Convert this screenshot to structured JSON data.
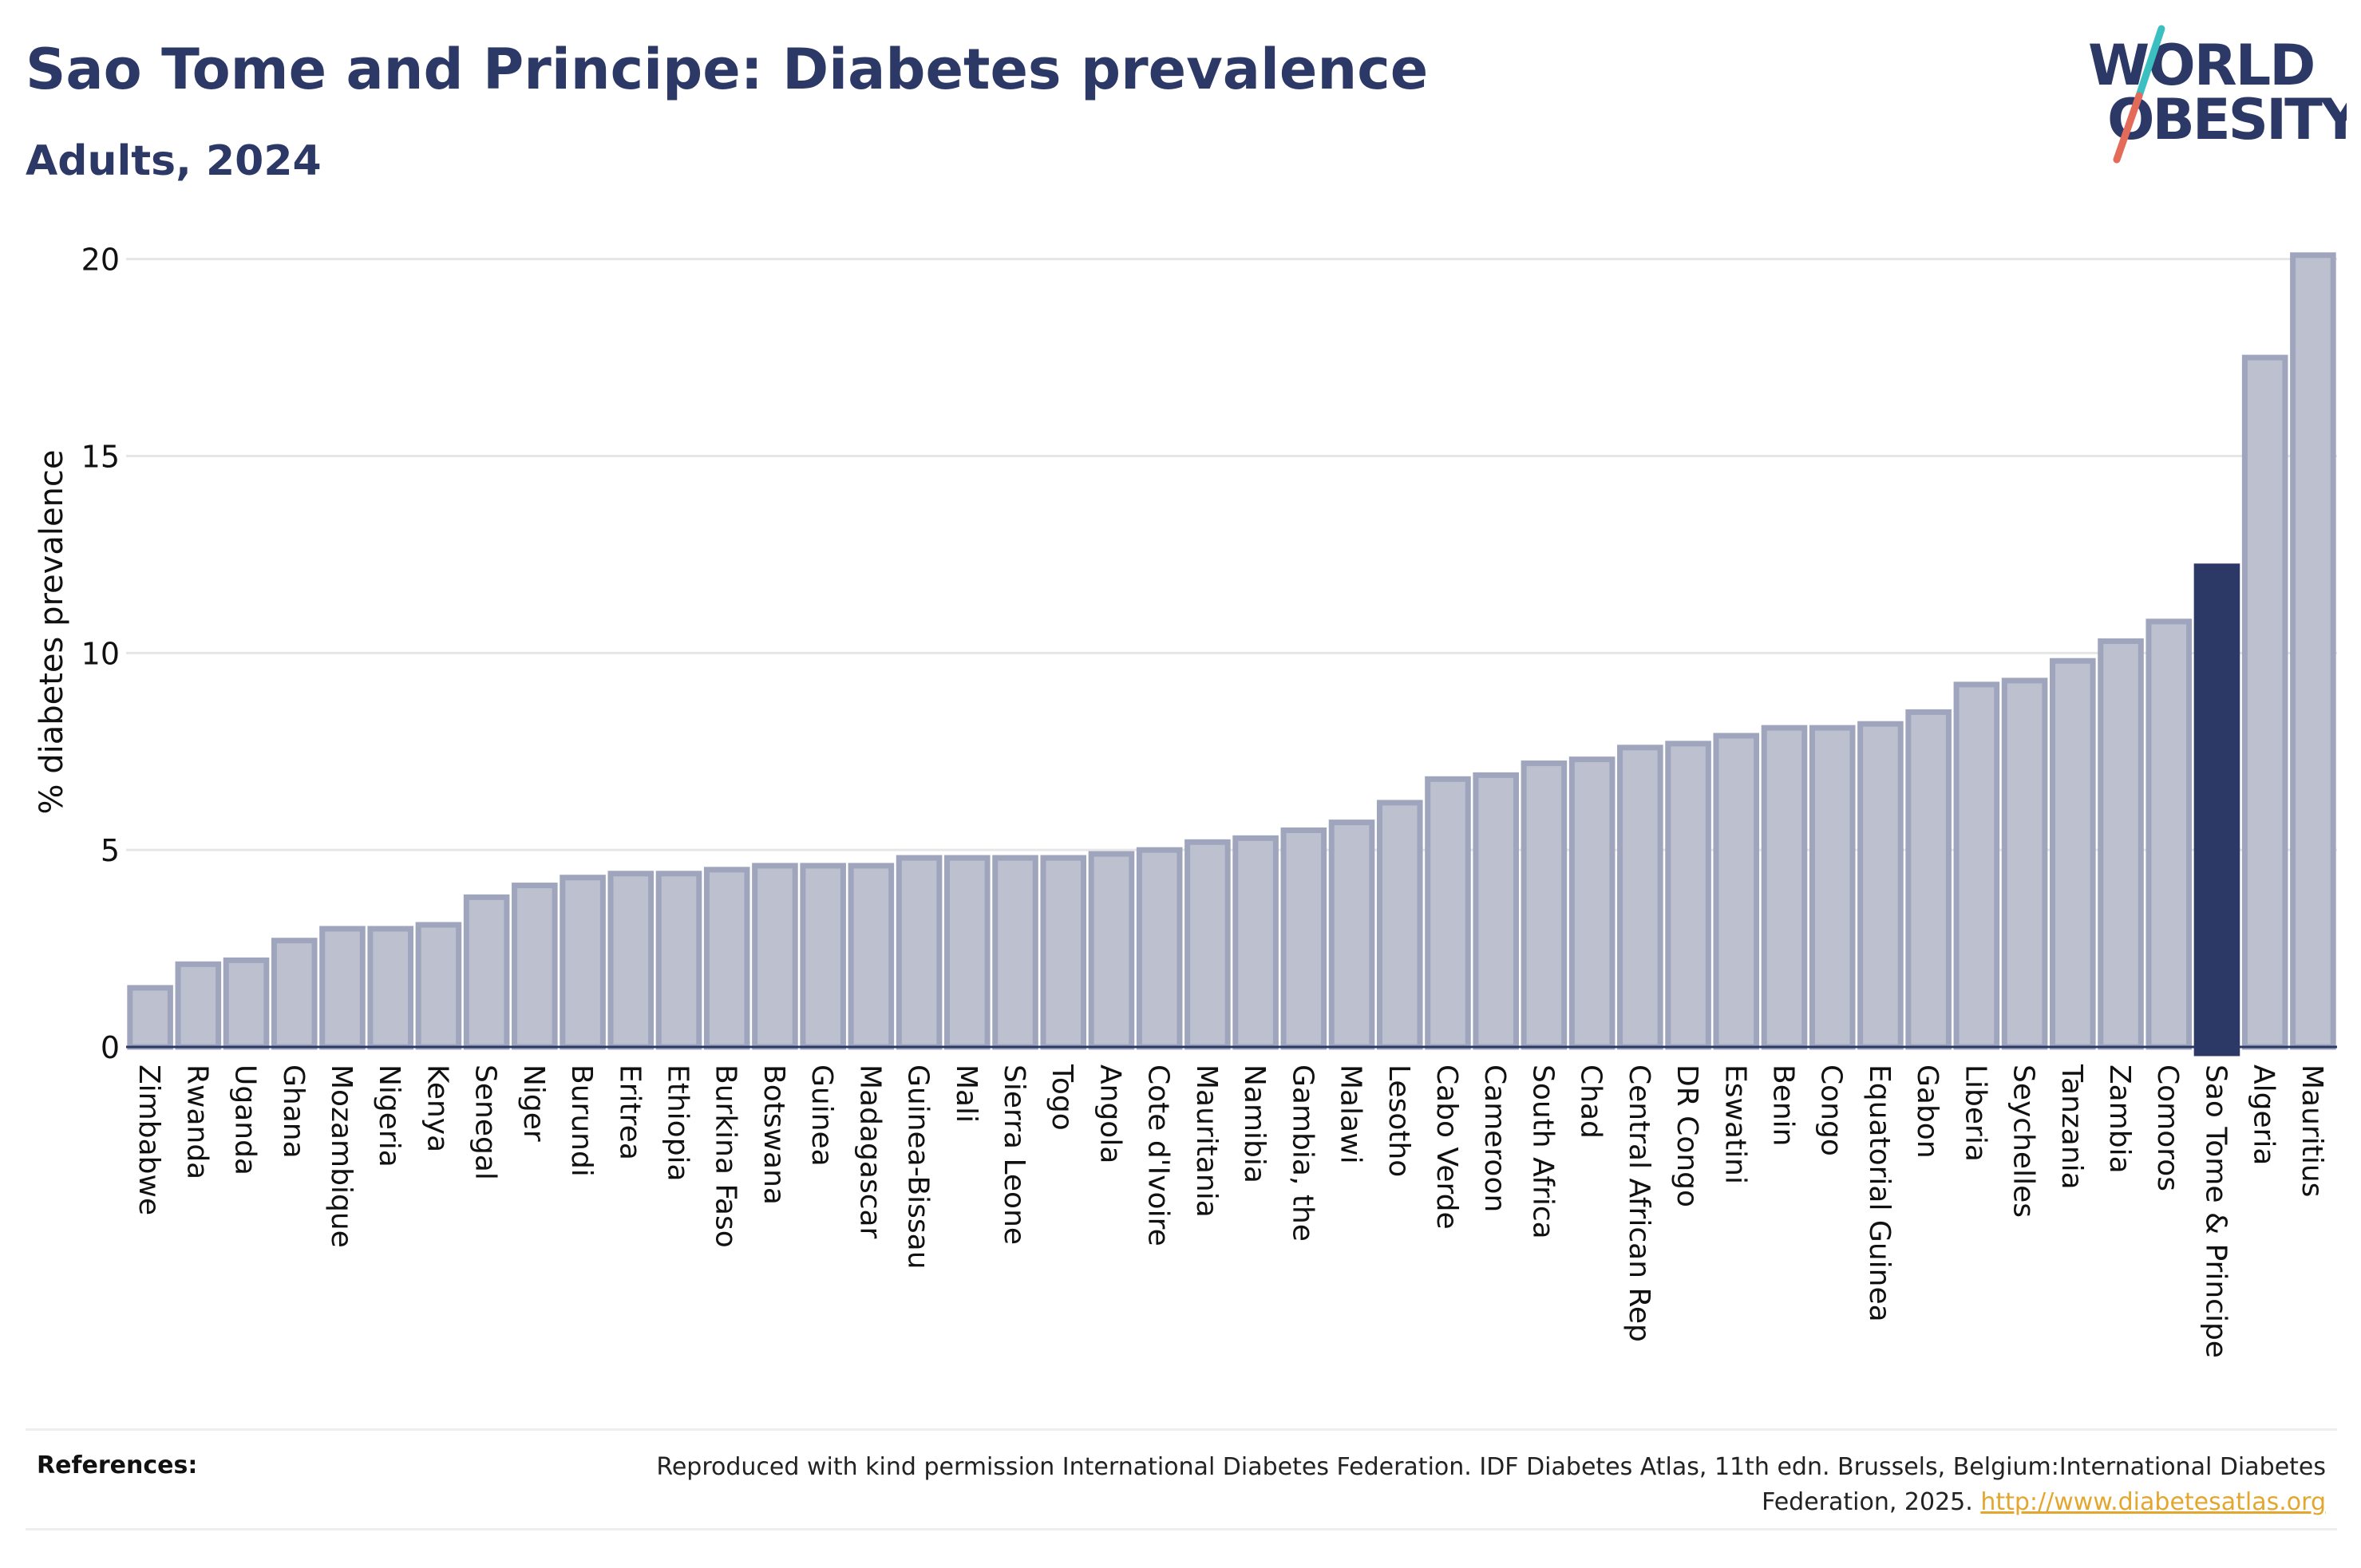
{
  "header": {
    "title": "Sao Tome and Principe: Diabetes prevalence",
    "subtitle": "Adults, 2024"
  },
  "logo": {
    "line1": "WORLD",
    "line2": "OBESITY",
    "colors": {
      "text": "#2c3865",
      "slash_teal": "#3bbfc0",
      "slash_red": "#e46b5a"
    }
  },
  "colors": {
    "bar_fill": "#bcc0cf",
    "bar_stroke": "#9fa5bd",
    "highlight": "#2c3865",
    "grid": "#e6e6e6",
    "axis": "#2c3865",
    "link": "#e3a72f"
  },
  "chart_data": {
    "type": "bar",
    "ylabel": "% diabetes prevalence",
    "xlabel": "",
    "ylim": [
      0,
      20.5
    ],
    "yticks": [
      0,
      5,
      10,
      15,
      20
    ],
    "grid": true,
    "highlight": "Sao Tome & Principe",
    "categories": [
      "Zimbabwe",
      "Rwanda",
      "Uganda",
      "Ghana",
      "Mozambique",
      "Nigeria",
      "Kenya",
      "Senegal",
      "Niger",
      "Burundi",
      "Eritrea",
      "Ethiopia",
      "Burkina Faso",
      "Botswana",
      "Guinea",
      "Madagascar",
      "Guinea-Bissau",
      "Mali",
      "Sierra Leone",
      "Togo",
      "Angola",
      "Cote d'Ivoire",
      "Mauritania",
      "Namibia",
      "Gambia, the",
      "Malawi",
      "Lesotho",
      "Cabo Verde",
      "Cameroon",
      "South Africa",
      "Chad",
      "Central African Rep",
      "DR Congo",
      "Eswatini",
      "Benin",
      "Congo",
      "Equatorial Guinea",
      "Gabon",
      "Liberia",
      "Seychelles",
      "Tanzania",
      "Zambia",
      "Comoros",
      "Sao Tome & Principe",
      "Algeria",
      "Mauritius"
    ],
    "values": [
      1.5,
      2.1,
      2.2,
      2.7,
      3.0,
      3.0,
      3.1,
      3.8,
      4.1,
      4.3,
      4.4,
      4.4,
      4.5,
      4.6,
      4.6,
      4.6,
      4.8,
      4.8,
      4.8,
      4.8,
      4.9,
      5.0,
      5.2,
      5.3,
      5.5,
      5.7,
      6.2,
      6.8,
      6.9,
      7.2,
      7.3,
      7.6,
      7.7,
      7.9,
      8.1,
      8.1,
      8.2,
      8.5,
      9.2,
      9.3,
      9.8,
      10.3,
      10.8,
      12.2,
      17.5,
      20.1
    ]
  },
  "references": {
    "label": "References:",
    "text": "Reproduced with kind permission International Diabetes Federation. IDF Diabetes Atlas, 11th edn. Brussels, Belgium:International Diabetes Federation, 2025.",
    "link": "http://www.diabetesatlas.org"
  }
}
